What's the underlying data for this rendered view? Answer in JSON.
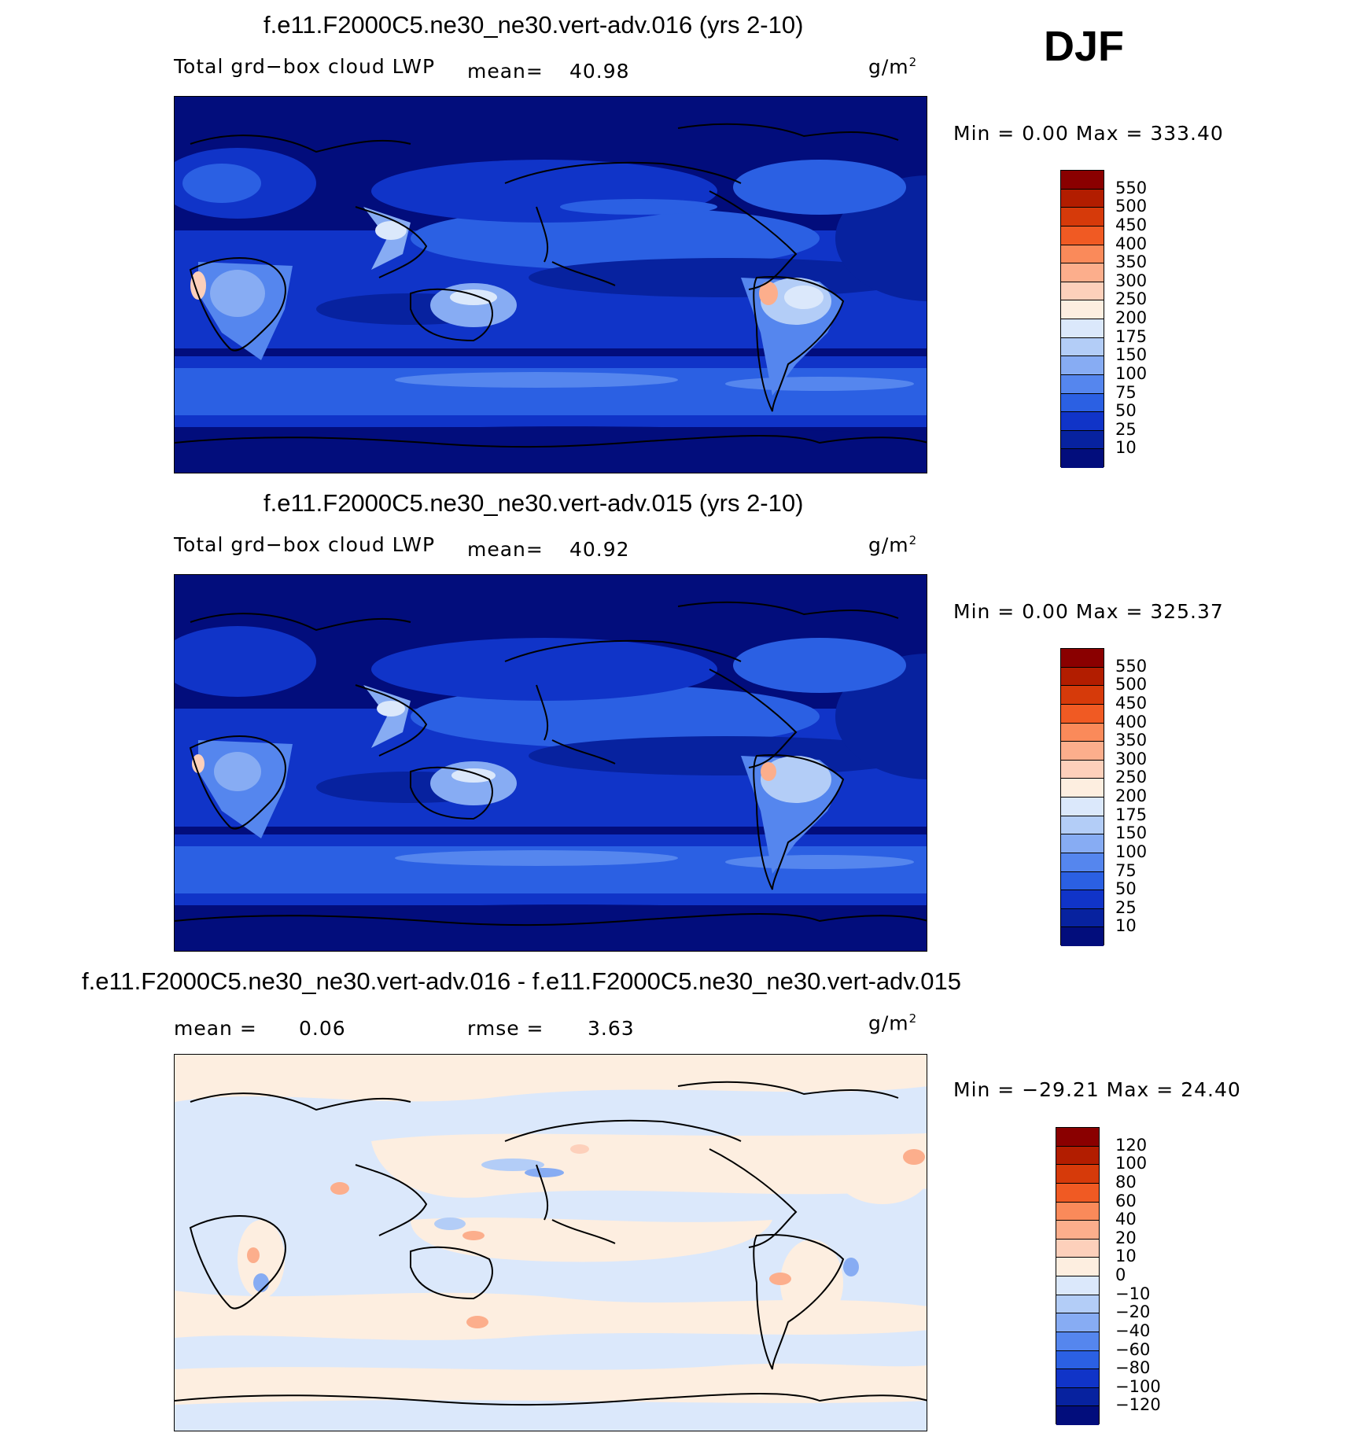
{
  "season": "DJF",
  "units": "g/m",
  "units_sup": "2",
  "panels": [
    {
      "title": "f.e11.F2000C5.ne30_ne30.vert-adv.016 (yrs 2-10)",
      "subtitle": "Total grd−box cloud LWP",
      "mean_label": "mean=",
      "mean_value": "40.98",
      "stats": "Min =     0.00  Max  =  333.40"
    },
    {
      "title": "f.e11.F2000C5.ne30_ne30.vert-adv.015 (yrs 2-10)",
      "subtitle": "Total grd−box cloud LWP",
      "mean_label": "mean=",
      "mean_value": "40.92",
      "stats": "Min =     0.00  Max  =  325.37"
    },
    {
      "title": "f.e11.F2000C5.ne30_ne30.vert-adv.016 - f.e11.F2000C5.ne30_ne30.vert-adv.015",
      "mean_label": "mean =",
      "mean_value": "0.06",
      "rmse_label": "rmse =",
      "rmse_value": "3.63",
      "stats": "Min =  −29.21  Max  =    24.40"
    }
  ],
  "colorbar_abs": {
    "labels": [
      "550",
      "500",
      "450",
      "400",
      "350",
      "300",
      "250",
      "200",
      "175",
      "150",
      "100",
      "75",
      "50",
      "25",
      "10"
    ],
    "colors": [
      "#8a0000",
      "#b21d00",
      "#d63a0a",
      "#f05a23",
      "#fa8a5a",
      "#fcae8c",
      "#fdd0bb",
      "#fdeee0",
      "#dbe8fb",
      "#b3cdf7",
      "#87acf3",
      "#5586ee",
      "#2b60e3",
      "#1034c8",
      "#07229f",
      "#020d7c"
    ]
  },
  "colorbar_diff": {
    "labels": [
      "120",
      "100",
      "80",
      "60",
      "40",
      "20",
      "10",
      "0",
      "−10",
      "−20",
      "−40",
      "−60",
      "−80",
      "−100",
      "−120"
    ],
    "colors": [
      "#8a0000",
      "#b21d00",
      "#d63a0a",
      "#f05a23",
      "#fa8a5a",
      "#fcae8c",
      "#fdd0bb",
      "#fdeee0",
      "#dbe8fb",
      "#b3cdf7",
      "#87acf3",
      "#5586ee",
      "#2b60e3",
      "#1034c8",
      "#07229f",
      "#020d7c"
    ]
  }
}
